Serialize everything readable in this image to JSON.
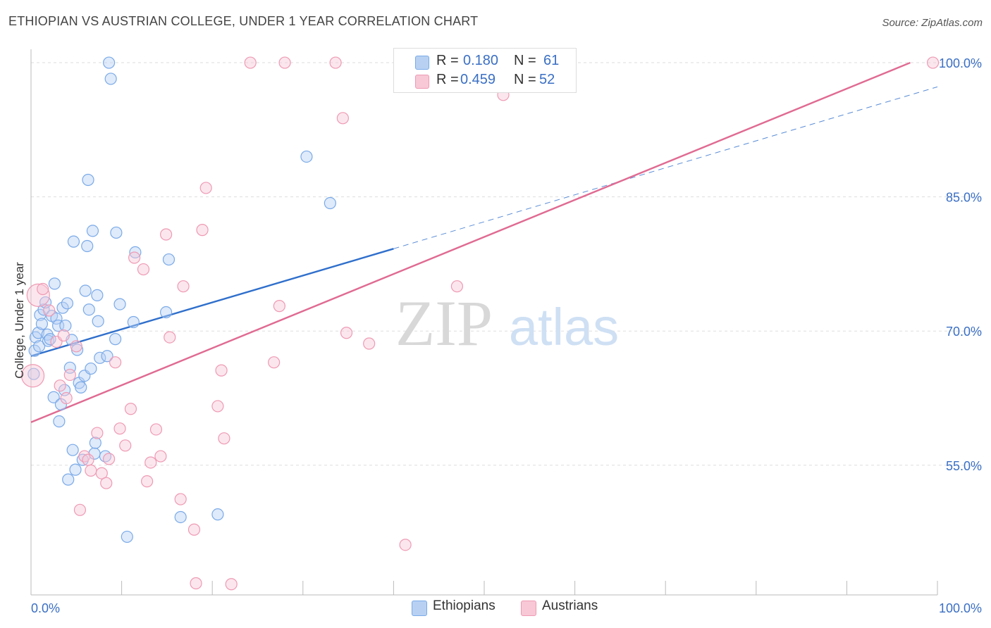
{
  "title": "ETHIOPIAN VS AUSTRIAN COLLEGE, UNDER 1 YEAR CORRELATION CHART",
  "source": "Source: ZipAtlas.com",
  "watermark": {
    "zip": "ZIP",
    "atlas": "atlas"
  },
  "legend": {
    "r_label": "R =",
    "n_label": "N =",
    "rows": [
      {
        "r": "0.180",
        "n": "61"
      },
      {
        "r": "0.459",
        "n": "52"
      }
    ]
  },
  "colors": {
    "blue": "#7aaae8",
    "blue_fill": "#b8d1f3",
    "blue_line": "#2f6fcc",
    "pink": "#ee9ab4",
    "pink_fill": "#f8c8d6",
    "pink_line": "#e06a92",
    "axis_text": "#3a6fc4",
    "grid": "#dddddd"
  },
  "chart_data": {
    "type": "scatter",
    "title": "ETHIOPIAN VS AUSTRIAN COLLEGE, UNDER 1 YEAR CORRELATION CHART",
    "xlabel": "",
    "ylabel": "College, Under 1 year",
    "xlim": [
      0,
      100
    ],
    "ylim": [
      40.5,
      101.5
    ],
    "x_tick_labels": [
      "0.0%",
      "100.0%"
    ],
    "y_ticks": [
      55,
      70,
      85,
      100
    ],
    "y_tick_labels": [
      "55.0%",
      "70.0%",
      "85.0%",
      "100.0%"
    ],
    "grid": true,
    "series": [
      {
        "name": "Ethiopians",
        "color": "blue",
        "r": 0.18,
        "n": 61,
        "trend": {
          "x": [
            0,
            40
          ],
          "y": [
            67.2,
            79.2
          ],
          "dashed_to": [
            100,
            97.3
          ]
        },
        "points": [
          [
            0.3,
            65.2
          ],
          [
            0.4,
            67.8
          ],
          [
            0.5,
            69.3
          ],
          [
            0.8,
            69.8
          ],
          [
            0.9,
            68.3
          ],
          [
            1.0,
            71.8
          ],
          [
            1.2,
            70.8
          ],
          [
            1.4,
            72.4
          ],
          [
            1.6,
            73.2
          ],
          [
            1.8,
            69.6
          ],
          [
            1.9,
            68.9
          ],
          [
            2.1,
            69.1
          ],
          [
            2.3,
            71.7
          ],
          [
            2.5,
            62.6
          ],
          [
            2.6,
            75.3
          ],
          [
            2.8,
            71.4
          ],
          [
            3.0,
            70.6
          ],
          [
            3.1,
            59.9
          ],
          [
            3.3,
            61.8
          ],
          [
            3.5,
            72.6
          ],
          [
            3.7,
            63.4
          ],
          [
            3.8,
            70.6
          ],
          [
            4.0,
            73.1
          ],
          [
            4.1,
            53.4
          ],
          [
            4.3,
            65.9
          ],
          [
            4.5,
            69.0
          ],
          [
            4.6,
            56.7
          ],
          [
            4.7,
            80.0
          ],
          [
            4.9,
            54.5
          ],
          [
            5.1,
            67.9
          ],
          [
            5.3,
            64.2
          ],
          [
            5.5,
            63.7
          ],
          [
            5.7,
            55.6
          ],
          [
            5.9,
            65.0
          ],
          [
            6.0,
            74.5
          ],
          [
            6.2,
            79.5
          ],
          [
            6.3,
            86.9
          ],
          [
            6.4,
            72.4
          ],
          [
            6.6,
            65.8
          ],
          [
            6.8,
            81.2
          ],
          [
            7.0,
            56.3
          ],
          [
            7.1,
            57.5
          ],
          [
            7.3,
            74.0
          ],
          [
            7.4,
            71.1
          ],
          [
            7.6,
            67.0
          ],
          [
            8.2,
            56.0
          ],
          [
            8.4,
            67.2
          ],
          [
            8.6,
            100.0
          ],
          [
            8.8,
            98.2
          ],
          [
            9.3,
            69.1
          ],
          [
            9.4,
            81.0
          ],
          [
            9.8,
            73.0
          ],
          [
            10.6,
            47.0
          ],
          [
            11.3,
            71.0
          ],
          [
            14.9,
            72.1
          ],
          [
            15.2,
            78.0
          ],
          [
            16.5,
            49.2
          ],
          [
            20.6,
            49.5
          ],
          [
            30.4,
            89.5
          ],
          [
            33.0,
            84.3
          ],
          [
            11.5,
            78.8
          ]
        ]
      },
      {
        "name": "Austrians",
        "color": "pink",
        "r": 0.459,
        "n": 52,
        "trend": {
          "x": [
            0,
            97.0
          ],
          "y": [
            59.8,
            100.0
          ]
        },
        "points": [
          [
            0.2,
            65.0
          ],
          [
            0.8,
            74.0
          ],
          [
            1.3,
            74.7
          ],
          [
            2.0,
            72.3
          ],
          [
            2.8,
            68.8
          ],
          [
            3.2,
            63.9
          ],
          [
            3.6,
            69.5
          ],
          [
            3.9,
            62.5
          ],
          [
            4.3,
            65.1
          ],
          [
            5.0,
            68.3
          ],
          [
            5.4,
            50.0
          ],
          [
            5.9,
            56.0
          ],
          [
            6.3,
            55.6
          ],
          [
            6.6,
            54.4
          ],
          [
            7.3,
            58.6
          ],
          [
            7.8,
            54.1
          ],
          [
            8.3,
            53.0
          ],
          [
            8.6,
            55.7
          ],
          [
            9.3,
            66.5
          ],
          [
            9.8,
            59.1
          ],
          [
            10.4,
            57.2
          ],
          [
            11.0,
            61.3
          ],
          [
            11.4,
            78.2
          ],
          [
            12.4,
            76.9
          ],
          [
            12.8,
            53.2
          ],
          [
            13.2,
            55.3
          ],
          [
            13.8,
            59.0
          ],
          [
            14.3,
            56.0
          ],
          [
            14.9,
            80.8
          ],
          [
            15.3,
            69.3
          ],
          [
            16.5,
            51.2
          ],
          [
            16.8,
            75.0
          ],
          [
            18.0,
            47.8
          ],
          [
            18.2,
            41.8
          ],
          [
            18.9,
            81.3
          ],
          [
            19.3,
            86.0
          ],
          [
            20.6,
            61.6
          ],
          [
            21.0,
            65.6
          ],
          [
            21.3,
            58.0
          ],
          [
            22.1,
            41.7
          ],
          [
            24.2,
            100.0
          ],
          [
            26.8,
            66.5
          ],
          [
            27.4,
            72.8
          ],
          [
            28.0,
            100.0
          ],
          [
            33.6,
            100.0
          ],
          [
            34.4,
            93.8
          ],
          [
            34.8,
            69.8
          ],
          [
            37.3,
            68.6
          ],
          [
            41.3,
            46.1
          ],
          [
            47.0,
            75.0
          ],
          [
            52.1,
            96.4
          ],
          [
            99.5,
            100.0
          ]
        ]
      }
    ]
  },
  "bottom_legend": [
    {
      "label": "Ethiopians"
    },
    {
      "label": "Austrians"
    }
  ]
}
